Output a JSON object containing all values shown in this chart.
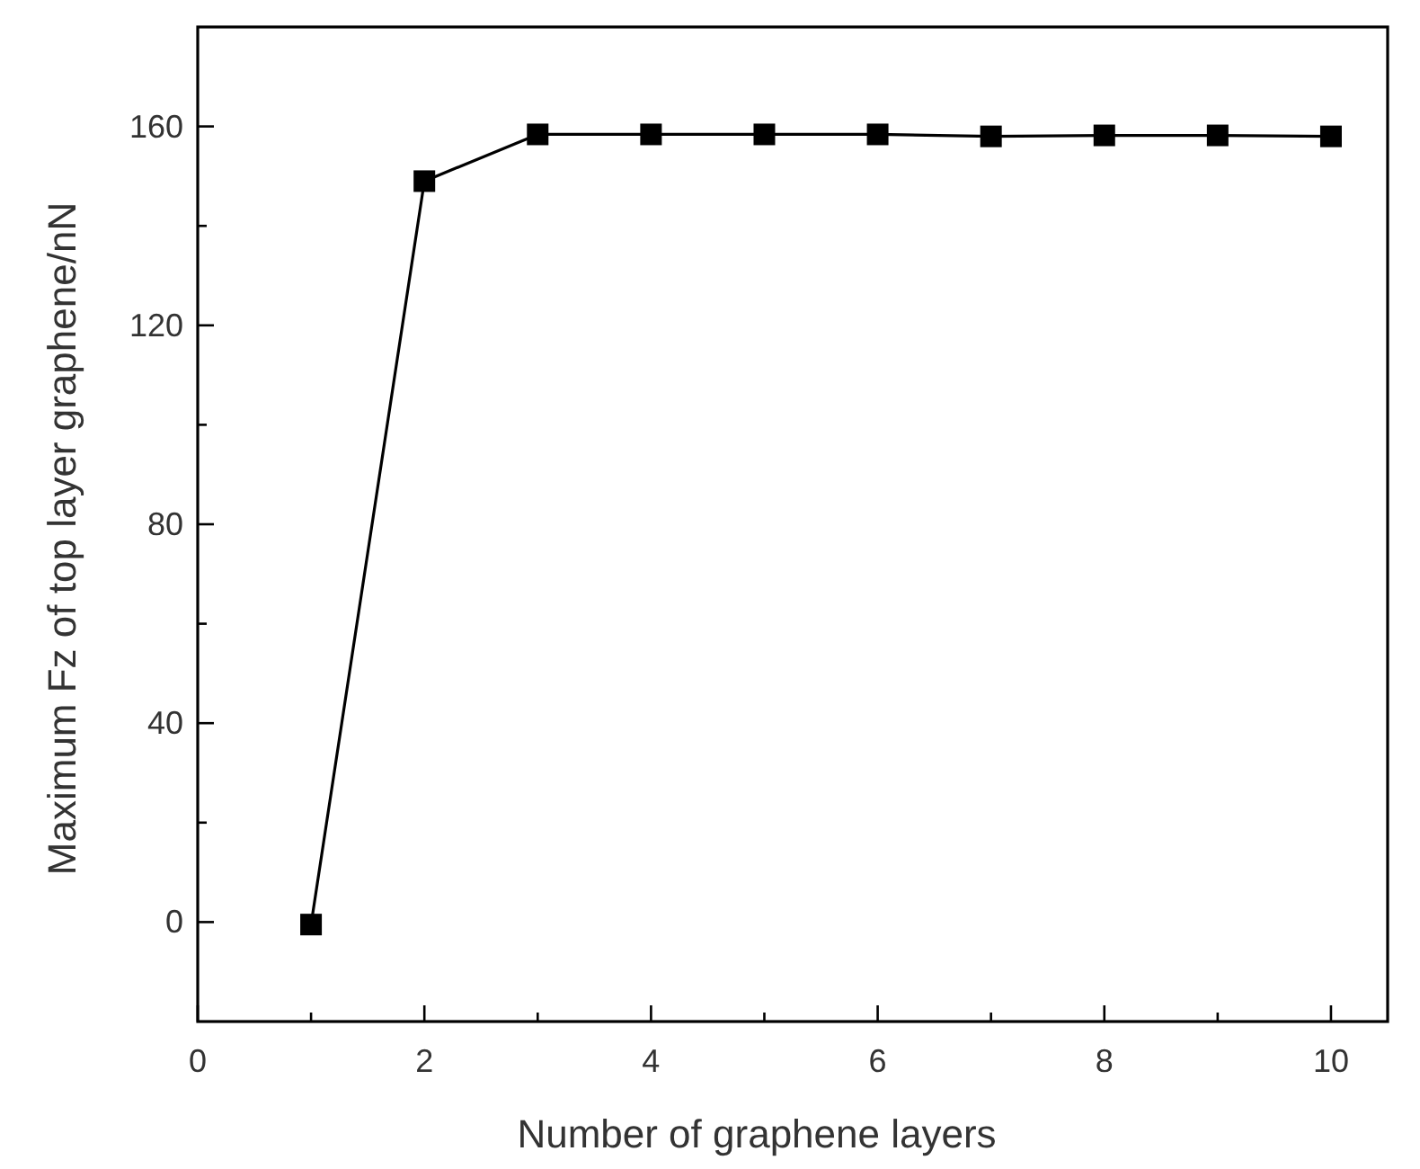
{
  "chart_data": {
    "type": "line",
    "xlabel": "Number of graphene layers",
    "ylabel": "Maximum Fz of top layer graphene/nN",
    "x": [
      1,
      2,
      3,
      4,
      5,
      6,
      7,
      8,
      9,
      10
    ],
    "series": [
      {
        "color": "#000000",
        "values": [
          -0.5,
          149,
          158.4,
          158.4,
          158.4,
          158.4,
          158,
          158.2,
          158.2,
          158
        ]
      }
    ],
    "xlim": [
      0,
      10.5
    ],
    "ylim": [
      -20,
      180
    ],
    "xticks": [
      0,
      {
        "value": 1,
        "label": null
      },
      2,
      {
        "value": 3,
        "label": null
      },
      4,
      {
        "value": 5,
        "label": null
      },
      6,
      {
        "value": 7,
        "label": null
      },
      8,
      {
        "value": 9,
        "label": null
      },
      10
    ],
    "yticks": [
      0,
      {
        "value": 20,
        "label": null
      },
      40,
      {
        "value": 60,
        "label": null
      },
      80,
      {
        "value": 100,
        "label": null
      },
      120,
      {
        "value": 140,
        "label": null
      },
      160
    ],
    "marker": "square",
    "line_style": "solid",
    "grid": false
  }
}
